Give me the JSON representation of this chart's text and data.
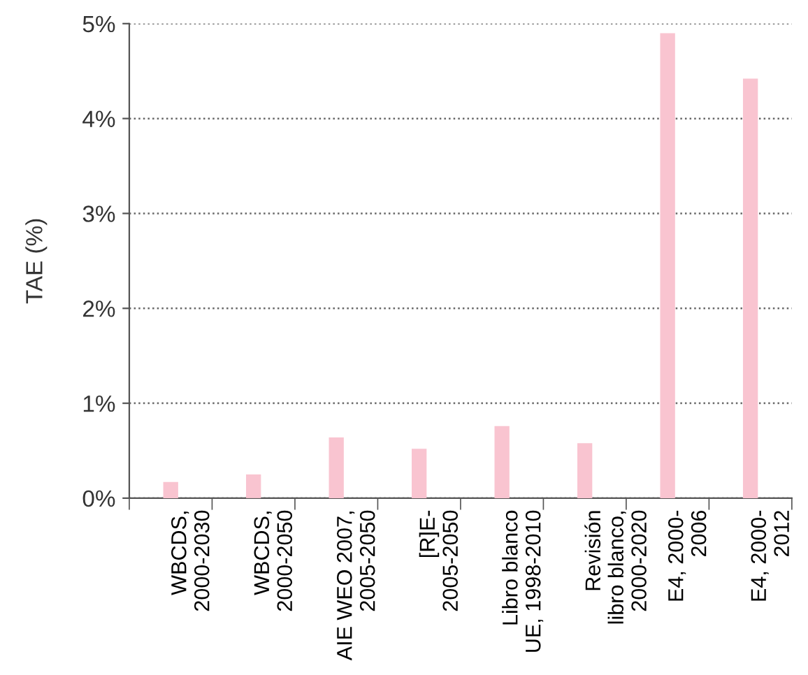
{
  "chart_data": {
    "type": "bar",
    "ylabel": "TAE (%)",
    "categories": [
      "WBCDS,\n2000-2030",
      "WBCDS,\n2000-2050",
      "AIE WEO 2007,\n2005-2050",
      "[R]E-\n2005-2050",
      "Libro blanco\nUE, 1998-2010",
      "Revisión\nlibro blanco,\n2000-2020",
      "E4, 2000-\n2006",
      "E4, 2000-\n2012"
    ],
    "values": [
      0.17,
      0.25,
      0.64,
      0.52,
      0.76,
      0.58,
      4.9,
      4.42
    ],
    "color": "#f9c4d0",
    "ylim": [
      0,
      5
    ],
    "yticks": [
      {
        "value": 0,
        "label": "0%"
      },
      {
        "value": 1,
        "label": "1%"
      },
      {
        "value": 2,
        "label": "2%"
      },
      {
        "value": 3,
        "label": "3%"
      },
      {
        "value": 4,
        "label": "4%"
      },
      {
        "value": 5,
        "label": "5%"
      }
    ],
    "grid": "y",
    "line_style": "dotted",
    "legend": false
  }
}
